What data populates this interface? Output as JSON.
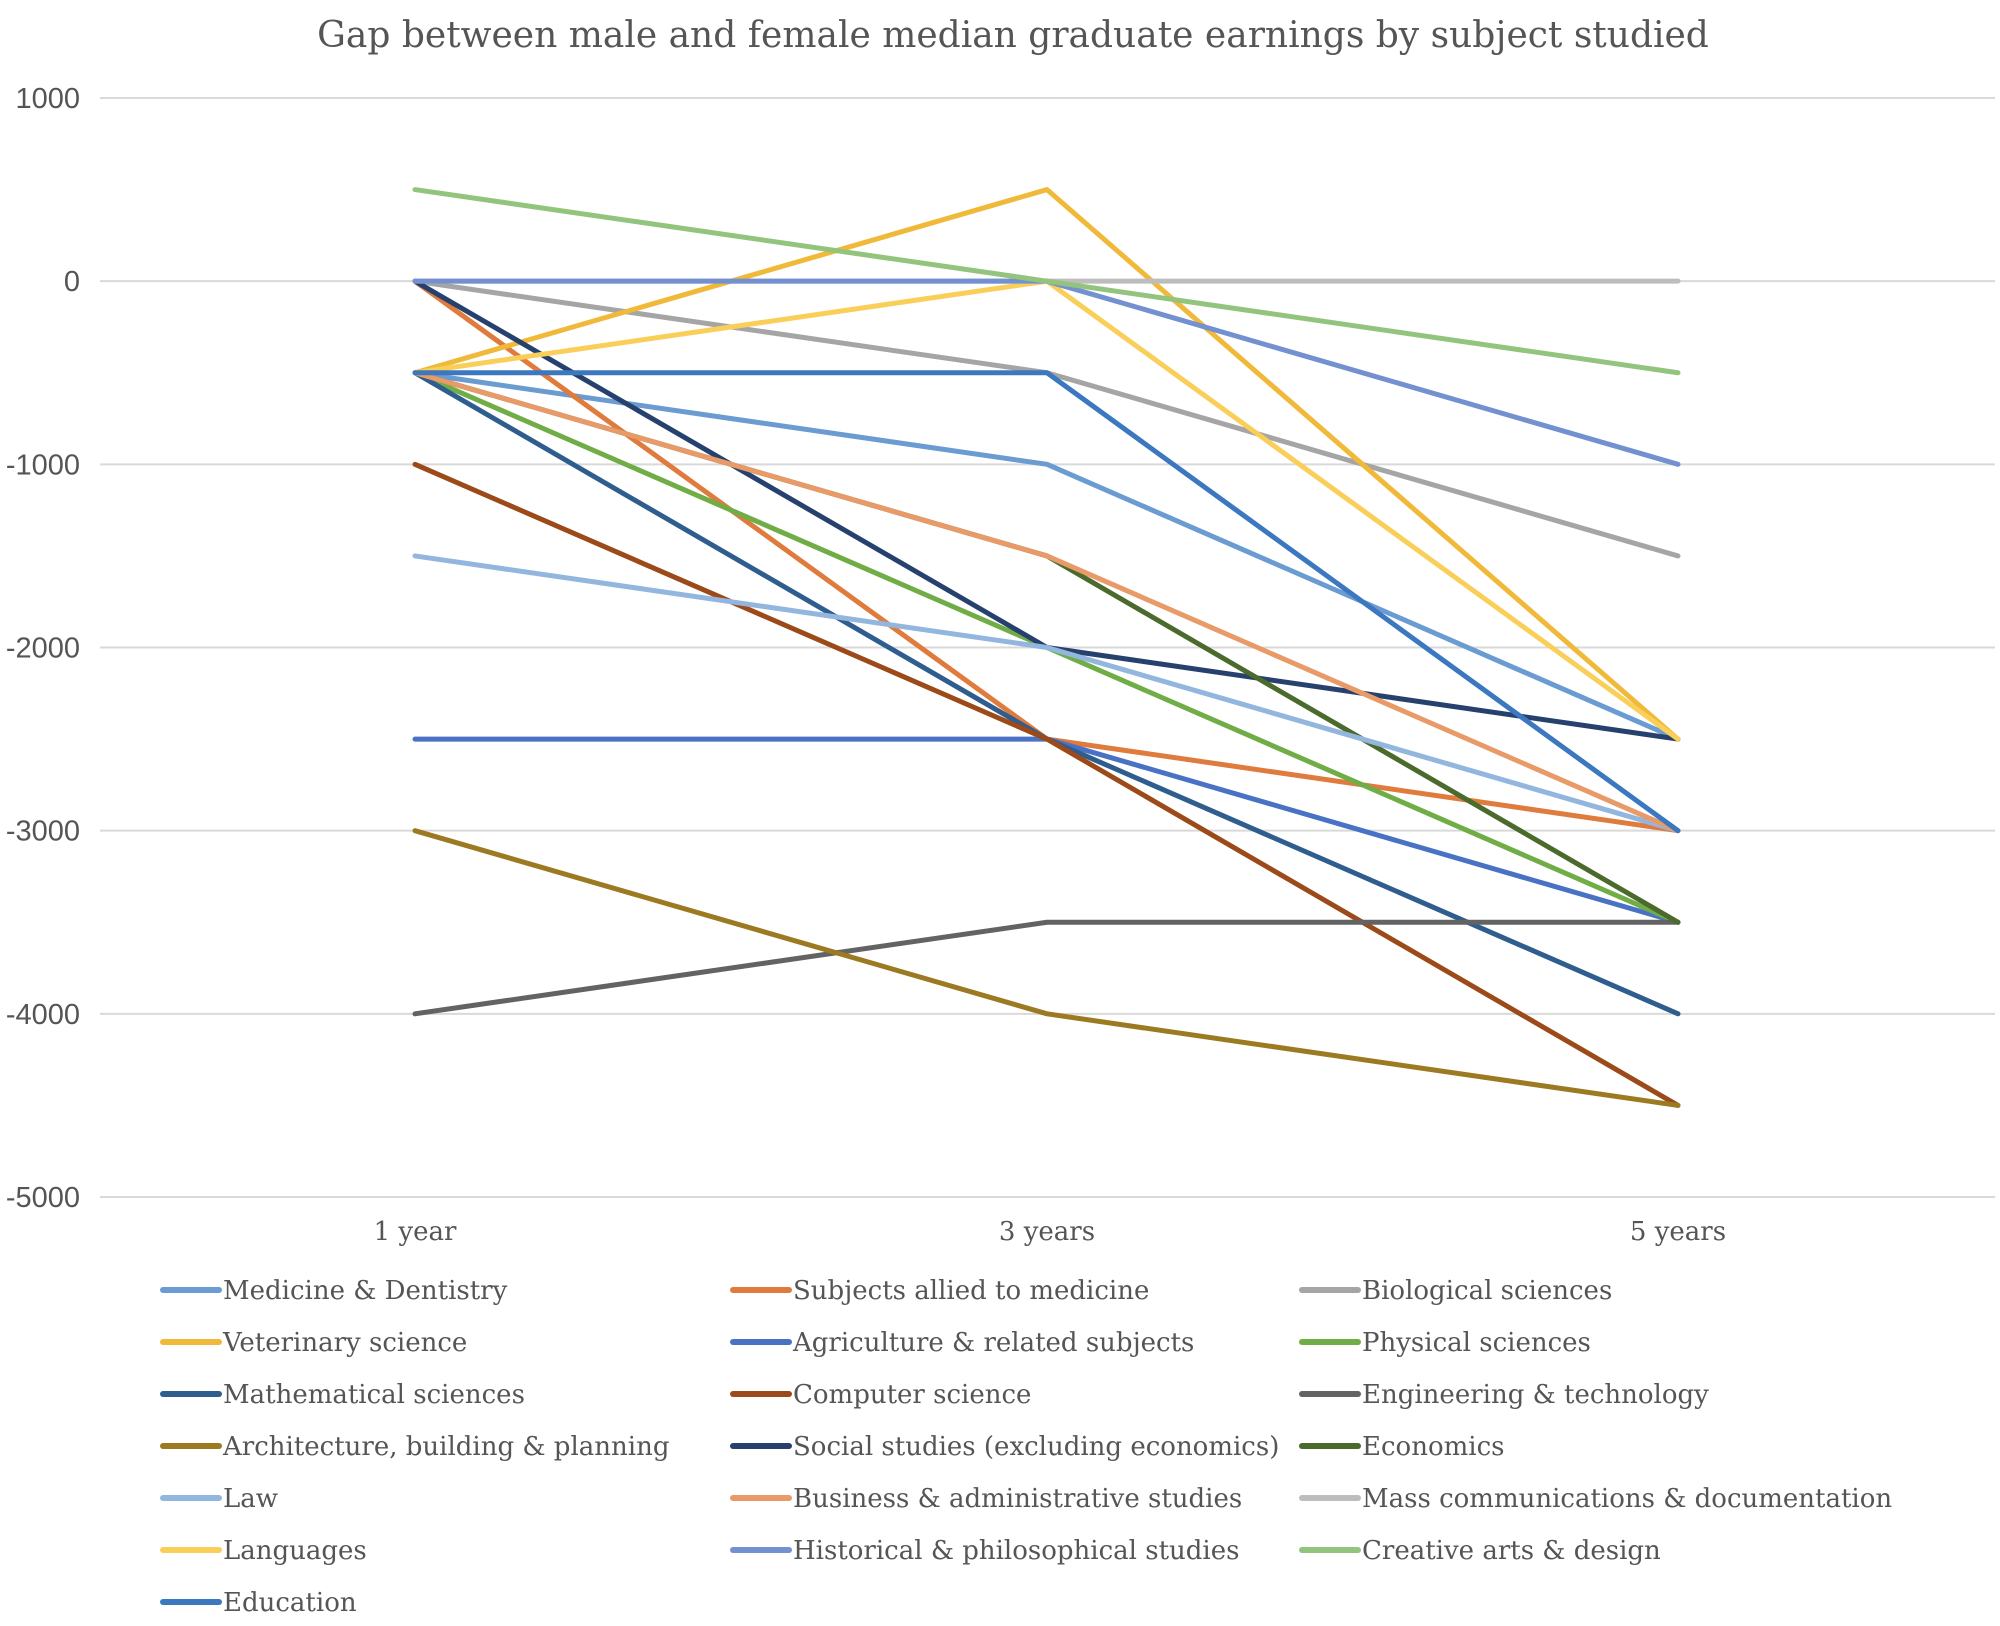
{
  "chart_data": {
    "type": "line",
    "title": "Gap between male and female median graduate earnings by subject studied",
    "xlabel": "",
    "ylabel": "",
    "categories": [
      "1 year",
      "3 years",
      "5 years"
    ],
    "ylim": [
      -5000,
      1000
    ],
    "yticks": [
      1000,
      0,
      -1000,
      -2000,
      -3000,
      -4000,
      -5000
    ],
    "legend_position": "bottom",
    "series": [
      {
        "name": "Medicine & Dentistry",
        "color": "#6a9bd1",
        "values": [
          -500,
          -1000,
          -2500
        ]
      },
      {
        "name": "Subjects allied to medicine",
        "color": "#e07b3e",
        "values": [
          0,
          -2500,
          -3000
        ]
      },
      {
        "name": "Biological sciences",
        "color": "#a5a5a5",
        "values": [
          0,
          -500,
          -1500
        ]
      },
      {
        "name": "Veterinary science",
        "color": "#f0b93a",
        "values": [
          -500,
          500,
          -2500
        ]
      },
      {
        "name": "Agriculture & related subjects",
        "color": "#4a72c4",
        "values": [
          -2500,
          -2500,
          -3500
        ]
      },
      {
        "name": "Physical sciences",
        "color": "#70ad47",
        "values": [
          -500,
          -2000,
          -3500
        ]
      },
      {
        "name": "Mathematical sciences",
        "color": "#2e5d8e",
        "values": [
          -500,
          -2500,
          -4000
        ]
      },
      {
        "name": "Computer science",
        "color": "#9c4a1a",
        "values": [
          -1000,
          -2500,
          -4500
        ]
      },
      {
        "name": "Engineering & technology",
        "color": "#636363",
        "values": [
          -4000,
          -3500,
          -3500
        ]
      },
      {
        "name": "Architecture, building & planning",
        "color": "#9c7a22",
        "values": [
          -3000,
          -4000,
          -4500
        ]
      },
      {
        "name": "Social studies (excluding economics)",
        "color": "#26416e",
        "values": [
          0,
          -2000,
          -2500
        ]
      },
      {
        "name": "Economics",
        "color": "#4a6b2c",
        "values": [
          -500,
          -1500,
          -3500
        ]
      },
      {
        "name": "Law",
        "color": "#93b6df",
        "values": [
          -1500,
          -2000,
          -3000
        ]
      },
      {
        "name": "Business & administrative studies",
        "color": "#e89a68",
        "values": [
          -500,
          -1500,
          -3000
        ]
      },
      {
        "name": "Mass communications & documentation",
        "color": "#bdbdbd",
        "values": [
          0,
          0,
          0
        ]
      },
      {
        "name": "Languages",
        "color": "#f9cf5a",
        "values": [
          -500,
          0,
          -2500
        ]
      },
      {
        "name": "Historical & philosophical studies",
        "color": "#7390d0",
        "values": [
          0,
          0,
          -1000
        ]
      },
      {
        "name": "Creative arts & design",
        "color": "#93c47d",
        "values": [
          500,
          0,
          -500
        ]
      },
      {
        "name": "Education",
        "color": "#3c78c0",
        "values": [
          -500,
          -500,
          -3000
        ]
      }
    ]
  }
}
